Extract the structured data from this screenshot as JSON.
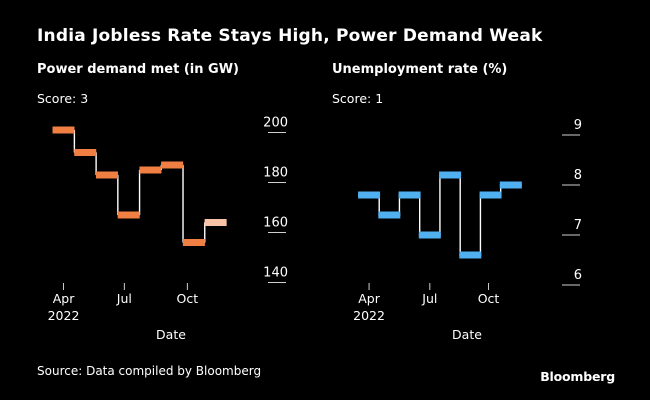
{
  "header": {
    "title": "India Jobless Rate Stays High, Power Demand Weak"
  },
  "footer": {
    "source": "Source: Data compiled by Bloomberg",
    "brand": "Bloomberg"
  },
  "colors": {
    "background": "#000000",
    "text": "#ffffff",
    "power_series": "#f07f43",
    "power_last": "#f7c2a5",
    "unemployment_series": "#51b0f0",
    "unemployment_last": "#51b0f0",
    "step_line": "#ffffff"
  },
  "chart_data": [
    {
      "id": "power",
      "type": "line",
      "style": "step",
      "title": "Power demand met (in GW)",
      "score": "Score: 3",
      "xlabel": "Date",
      "ylabel": "",
      "ylim": [
        135,
        205
      ],
      "yticks": [
        140,
        160,
        180,
        200
      ],
      "x": [
        0,
        1,
        2,
        3,
        4,
        5,
        6,
        7
      ],
      "values": [
        197,
        188,
        179,
        163,
        181,
        183,
        152,
        160
      ],
      "xticks": [
        {
          "pos": 0,
          "label": "Apr",
          "sublabel": "2022"
        },
        {
          "pos": 2.8,
          "label": "Jul",
          "sublabel": ""
        },
        {
          "pos": 5.7,
          "label": "Oct",
          "sublabel": ""
        }
      ],
      "xlim": [
        -0.3,
        7.8
      ],
      "last_point_highlight": true
    },
    {
      "id": "unemployment",
      "type": "line",
      "style": "step",
      "title": "Unemployment rate (%)",
      "score": "Score: 1",
      "xlabel": "Date",
      "ylabel": "",
      "ylim": [
        5.8,
        9.3
      ],
      "yticks": [
        6,
        7,
        8,
        9
      ],
      "x": [
        0,
        1,
        2,
        3,
        4,
        5,
        6,
        7
      ],
      "values": [
        7.6,
        7.2,
        7.6,
        6.8,
        8.0,
        6.4,
        7.6,
        7.8
      ],
      "xticks": [
        {
          "pos": 0,
          "label": "Apr",
          "sublabel": "2022"
        },
        {
          "pos": 3,
          "label": "Jul",
          "sublabel": ""
        },
        {
          "pos": 5.9,
          "label": "Oct",
          "sublabel": ""
        }
      ],
      "xlim": [
        -0.3,
        7.8
      ],
      "last_point_highlight": false
    }
  ]
}
